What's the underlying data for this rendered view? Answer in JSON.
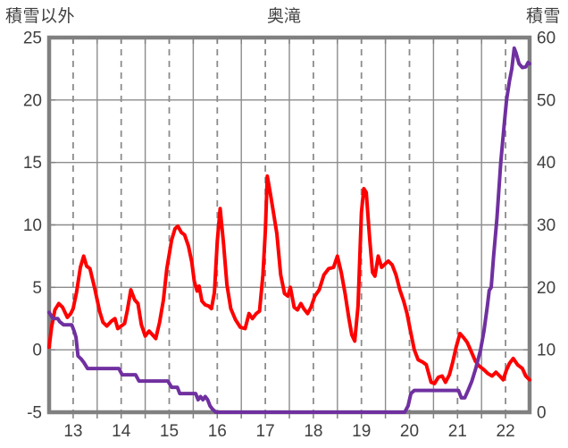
{
  "header": {
    "left_axis_title": "積雪以外",
    "chart_title": "奥滝",
    "right_axis_title": "積雪"
  },
  "chart_data": {
    "type": "line",
    "title": "奥滝",
    "station": "奥滝",
    "x_axis": {
      "range": [
        12.5,
        22.5
      ],
      "tick_labels": [
        "13",
        "14",
        "15",
        "16",
        "17",
        "18",
        "19",
        "20",
        "21",
        "22"
      ],
      "tick_positions": [
        13,
        14,
        15,
        16,
        17,
        18,
        19,
        20,
        21,
        22
      ],
      "dashed_gridlines": [
        13,
        14,
        15,
        16,
        17,
        18,
        19,
        20,
        21,
        22
      ],
      "solid_gridlines": [
        13.5,
        14.5,
        15.5,
        16.5,
        17.5,
        18.5,
        19.5,
        20.5,
        21.5
      ],
      "minor_tick_step": 0.5
    },
    "left_axis": {
      "title": "積雪以外",
      "range": [
        -5,
        25
      ],
      "ticks": [
        25,
        20,
        15,
        10,
        5,
        0,
        -5
      ],
      "gridline_values": [
        20,
        15,
        10,
        5,
        0
      ]
    },
    "right_axis": {
      "title": "積雪",
      "range": [
        0,
        60
      ],
      "ticks": [
        60,
        50,
        40,
        30,
        20,
        10,
        0
      ],
      "tick_mark_values": [
        50,
        40,
        30,
        20,
        10
      ]
    },
    "grid": true,
    "legend_position": "none",
    "series": [
      {
        "name": "積雪以外",
        "axis": "left",
        "color": "#FF0000",
        "points": [
          [
            12.5,
            0.2
          ],
          [
            12.55,
            1.8
          ],
          [
            12.62,
            3.2
          ],
          [
            12.7,
            3.7
          ],
          [
            12.78,
            3.4
          ],
          [
            12.88,
            2.6
          ],
          [
            12.95,
            2.9
          ],
          [
            13.0,
            3.3
          ],
          [
            13.07,
            4.6
          ],
          [
            13.15,
            6.6
          ],
          [
            13.22,
            7.5
          ],
          [
            13.28,
            6.7
          ],
          [
            13.35,
            6.5
          ],
          [
            13.45,
            4.9
          ],
          [
            13.55,
            3.1
          ],
          [
            13.62,
            2.2
          ],
          [
            13.7,
            1.9
          ],
          [
            13.8,
            2.3
          ],
          [
            13.87,
            2.5
          ],
          [
            13.93,
            1.7
          ],
          [
            14.0,
            1.9
          ],
          [
            14.07,
            2.1
          ],
          [
            14.13,
            3.2
          ],
          [
            14.2,
            4.8
          ],
          [
            14.28,
            4.0
          ],
          [
            14.35,
            3.7
          ],
          [
            14.42,
            2.0
          ],
          [
            14.5,
            1.1
          ],
          [
            14.58,
            1.5
          ],
          [
            14.65,
            1.2
          ],
          [
            14.72,
            0.9
          ],
          [
            14.8,
            2.2
          ],
          [
            14.88,
            4.0
          ],
          [
            14.95,
            6.5
          ],
          [
            15.05,
            8.8
          ],
          [
            15.12,
            9.7
          ],
          [
            15.18,
            9.9
          ],
          [
            15.25,
            9.4
          ],
          [
            15.32,
            9.2
          ],
          [
            15.4,
            8.3
          ],
          [
            15.47,
            7.0
          ],
          [
            15.52,
            5.5
          ],
          [
            15.58,
            4.7
          ],
          [
            15.62,
            5.1
          ],
          [
            15.68,
            3.9
          ],
          [
            15.75,
            3.6
          ],
          [
            15.82,
            3.5
          ],
          [
            15.88,
            3.3
          ],
          [
            15.94,
            4.6
          ],
          [
            16.0,
            8.7
          ],
          [
            16.06,
            11.3
          ],
          [
            16.13,
            8.5
          ],
          [
            16.2,
            5.2
          ],
          [
            16.28,
            3.3
          ],
          [
            16.38,
            2.4
          ],
          [
            16.48,
            1.8
          ],
          [
            16.58,
            1.7
          ],
          [
            16.66,
            2.9
          ],
          [
            16.73,
            2.5
          ],
          [
            16.81,
            2.9
          ],
          [
            16.88,
            3.1
          ],
          [
            16.95,
            6.0
          ],
          [
            17.0,
            9.5
          ],
          [
            17.04,
            13.9
          ],
          [
            17.1,
            12.6
          ],
          [
            17.16,
            11.2
          ],
          [
            17.24,
            9.3
          ],
          [
            17.32,
            6.0
          ],
          [
            17.4,
            4.5
          ],
          [
            17.47,
            4.3
          ],
          [
            17.52,
            5.0
          ],
          [
            17.6,
            3.4
          ],
          [
            17.67,
            3.2
          ],
          [
            17.74,
            3.7
          ],
          [
            17.8,
            3.3
          ],
          [
            17.88,
            2.9
          ],
          [
            17.95,
            3.4
          ],
          [
            18.03,
            4.3
          ],
          [
            18.12,
            4.8
          ],
          [
            18.22,
            6.0
          ],
          [
            18.32,
            6.5
          ],
          [
            18.42,
            6.6
          ],
          [
            18.5,
            7.5
          ],
          [
            18.58,
            6.2
          ],
          [
            18.66,
            4.5
          ],
          [
            18.74,
            2.5
          ],
          [
            18.8,
            1.2
          ],
          [
            18.86,
            0.7
          ],
          [
            18.93,
            3.5
          ],
          [
            19.0,
            11.0
          ],
          [
            19.05,
            12.9
          ],
          [
            19.1,
            12.6
          ],
          [
            19.17,
            9.0
          ],
          [
            19.23,
            6.2
          ],
          [
            19.28,
            5.9
          ],
          [
            19.35,
            7.5
          ],
          [
            19.42,
            6.6
          ],
          [
            19.5,
            6.9
          ],
          [
            19.56,
            7.1
          ],
          [
            19.64,
            6.8
          ],
          [
            19.72,
            6.0
          ],
          [
            19.8,
            4.8
          ],
          [
            19.88,
            3.9
          ],
          [
            19.95,
            2.9
          ],
          [
            20.02,
            1.5
          ],
          [
            20.1,
            0.0
          ],
          [
            20.18,
            -0.8
          ],
          [
            20.28,
            -1.0
          ],
          [
            20.35,
            -1.2
          ],
          [
            20.45,
            -2.6
          ],
          [
            20.52,
            -2.7
          ],
          [
            20.6,
            -2.2
          ],
          [
            20.68,
            -2.1
          ],
          [
            20.75,
            -2.6
          ],
          [
            20.83,
            -2.0
          ],
          [
            20.9,
            -1.0
          ],
          [
            20.97,
            0.2
          ],
          [
            21.05,
            1.3
          ],
          [
            21.12,
            1.0
          ],
          [
            21.2,
            0.6
          ],
          [
            21.28,
            -0.1
          ],
          [
            21.37,
            -0.9
          ],
          [
            21.45,
            -1.3
          ],
          [
            21.55,
            -1.6
          ],
          [
            21.63,
            -1.9
          ],
          [
            21.72,
            -2.1
          ],
          [
            21.8,
            -1.8
          ],
          [
            21.88,
            -2.1
          ],
          [
            21.95,
            -2.4
          ],
          [
            22.02,
            -1.6
          ],
          [
            22.08,
            -1.1
          ],
          [
            22.16,
            -0.7
          ],
          [
            22.25,
            -1.2
          ],
          [
            22.35,
            -1.5
          ],
          [
            22.42,
            -2.1
          ],
          [
            22.5,
            -2.4
          ]
        ]
      },
      {
        "name": "積雪",
        "axis": "right",
        "color": "#7030A0",
        "points": [
          [
            12.5,
            16
          ],
          [
            12.58,
            15
          ],
          [
            12.68,
            15
          ],
          [
            12.72,
            14.5
          ],
          [
            12.8,
            14
          ],
          [
            12.97,
            14
          ],
          [
            13.02,
            13
          ],
          [
            13.06,
            12
          ],
          [
            13.1,
            9
          ],
          [
            13.17,
            8.5
          ],
          [
            13.22,
            8
          ],
          [
            13.3,
            7
          ],
          [
            13.95,
            7
          ],
          [
            14.02,
            6
          ],
          [
            14.3,
            6
          ],
          [
            14.37,
            5
          ],
          [
            14.97,
            5
          ],
          [
            15.05,
            4
          ],
          [
            15.17,
            4
          ],
          [
            15.22,
            3
          ],
          [
            15.55,
            3
          ],
          [
            15.6,
            2
          ],
          [
            15.65,
            2.5
          ],
          [
            15.7,
            2
          ],
          [
            15.75,
            2.5
          ],
          [
            15.8,
            2
          ],
          [
            15.85,
            1
          ],
          [
            15.9,
            0.5
          ],
          [
            15.97,
            0
          ],
          [
            19.9,
            0
          ],
          [
            19.97,
            1
          ],
          [
            20.03,
            3
          ],
          [
            20.1,
            3.5
          ],
          [
            21.02,
            3.5
          ],
          [
            21.08,
            2.3
          ],
          [
            21.15,
            2.3
          ],
          [
            21.22,
            3.5
          ],
          [
            21.3,
            5
          ],
          [
            21.38,
            7
          ],
          [
            21.48,
            10
          ],
          [
            21.55,
            13
          ],
          [
            21.62,
            17
          ],
          [
            21.66,
            19.5
          ],
          [
            21.7,
            20
          ],
          [
            21.75,
            25
          ],
          [
            21.82,
            31
          ],
          [
            21.9,
            40
          ],
          [
            21.97,
            46
          ],
          [
            22.02,
            50
          ],
          [
            22.08,
            53
          ],
          [
            22.13,
            55
          ],
          [
            22.18,
            58.3
          ],
          [
            22.22,
            57.5
          ],
          [
            22.28,
            55.8
          ],
          [
            22.35,
            55.2
          ],
          [
            22.42,
            55.3
          ],
          [
            22.47,
            56
          ],
          [
            22.5,
            55.8
          ]
        ]
      }
    ]
  },
  "colors": {
    "background": "#FFFFFF",
    "border": "#808080",
    "gridline": "#8C8C8C",
    "text": "#404040",
    "series_red": "#FF0000",
    "series_purple": "#7030A0"
  }
}
